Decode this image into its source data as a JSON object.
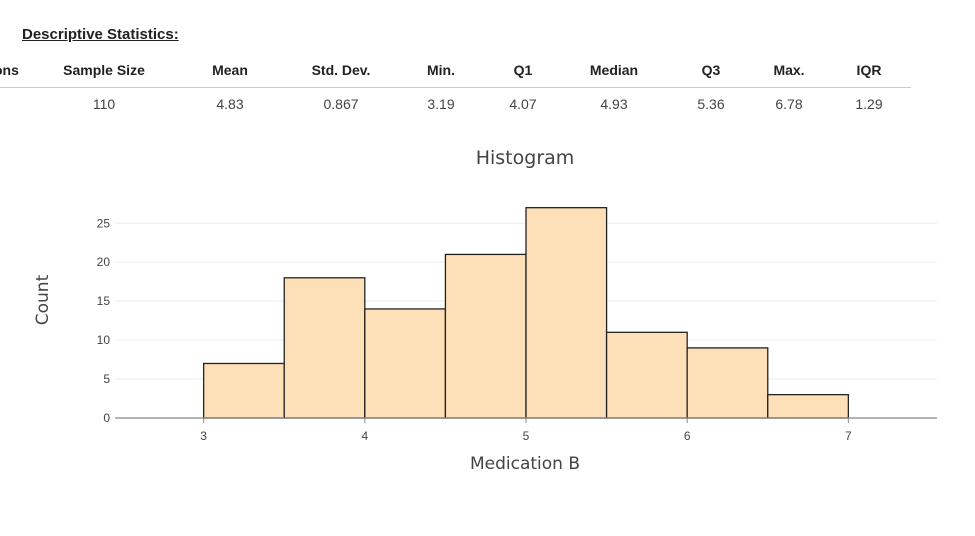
{
  "stats": {
    "title": "Descriptive Statistics:",
    "columns": [
      {
        "header": "ons",
        "value": ""
      },
      {
        "header": "Sample Size",
        "value": "110"
      },
      {
        "header": "Mean",
        "value": "4.83"
      },
      {
        "header": "Std. Dev.",
        "value": "0.867"
      },
      {
        "header": "Min.",
        "value": "3.19"
      },
      {
        "header": "Q1",
        "value": "4.07"
      },
      {
        "header": "Median",
        "value": "4.93"
      },
      {
        "header": "Q3",
        "value": "5.36"
      },
      {
        "header": "Max.",
        "value": "6.78"
      },
      {
        "header": "IQR",
        "value": "1.29"
      }
    ]
  },
  "chart_data": {
    "type": "bar",
    "subtype": "histogram",
    "title": "Histogram",
    "xlabel": "Medication B",
    "ylabel": "Count",
    "bins": [
      {
        "start": 3.0,
        "end": 3.5,
        "count": 7
      },
      {
        "start": 3.5,
        "end": 4.0,
        "count": 18
      },
      {
        "start": 4.0,
        "end": 4.5,
        "count": 14
      },
      {
        "start": 4.5,
        "end": 5.0,
        "count": 21
      },
      {
        "start": 5.0,
        "end": 5.5,
        "count": 27
      },
      {
        "start": 5.5,
        "end": 6.0,
        "count": 11
      },
      {
        "start": 6.0,
        "end": 6.5,
        "count": 9
      },
      {
        "start": 6.5,
        "end": 7.0,
        "count": 3
      }
    ],
    "xlim": [
      2.45,
      7.55
    ],
    "ylim": [
      0,
      28.5
    ],
    "xticks": [
      3,
      4,
      5,
      6,
      7
    ],
    "yticks": [
      0,
      5,
      10,
      15,
      20,
      25
    ],
    "grid": true,
    "colors": {
      "bar_fill": "#fde0b8",
      "bar_stroke": "#222222",
      "grid": "#eeeeee",
      "axis": "#888888"
    }
  }
}
